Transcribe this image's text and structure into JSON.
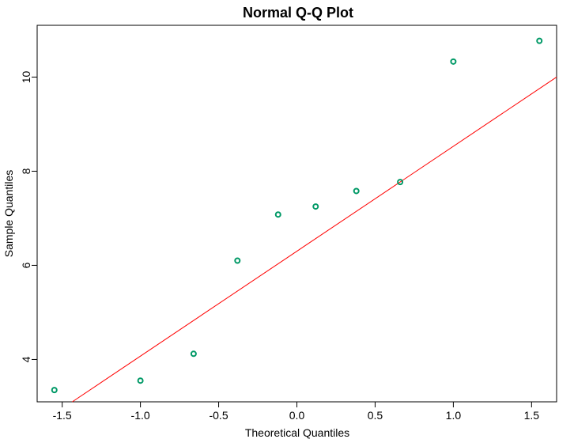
{
  "chart_data": {
    "type": "scatter",
    "title": "Normal Q-Q Plot",
    "xlabel": "Theoretical Quantiles",
    "ylabel": "Sample Quantiles",
    "xlim": [
      -1.66,
      1.66
    ],
    "ylim": [
      3.1,
      11.1
    ],
    "x_ticks": [
      -1.5,
      -1.0,
      -0.5,
      0.0,
      0.5,
      1.0,
      1.5
    ],
    "x_tick_labels": [
      "-1.5",
      "-1.0",
      "-0.5",
      "0.0",
      "0.5",
      "1.0",
      "1.5"
    ],
    "y_ticks": [
      4,
      6,
      8,
      10
    ],
    "y_tick_labels": [
      "4",
      "6",
      "8",
      "10"
    ],
    "grid": false,
    "points": {
      "x": [
        -1.55,
        -1.0,
        -0.66,
        -0.38,
        -0.12,
        0.12,
        0.38,
        0.66,
        1.0,
        1.55
      ],
      "y": [
        3.35,
        3.55,
        4.12,
        6.1,
        7.08,
        7.25,
        7.58,
        7.77,
        10.33,
        10.77
      ],
      "color": "#009966"
    },
    "reference_line": {
      "x": [
        -1.66,
        1.66
      ],
      "y": [
        2.6,
        10.0
      ],
      "color": "#ff0000"
    }
  }
}
